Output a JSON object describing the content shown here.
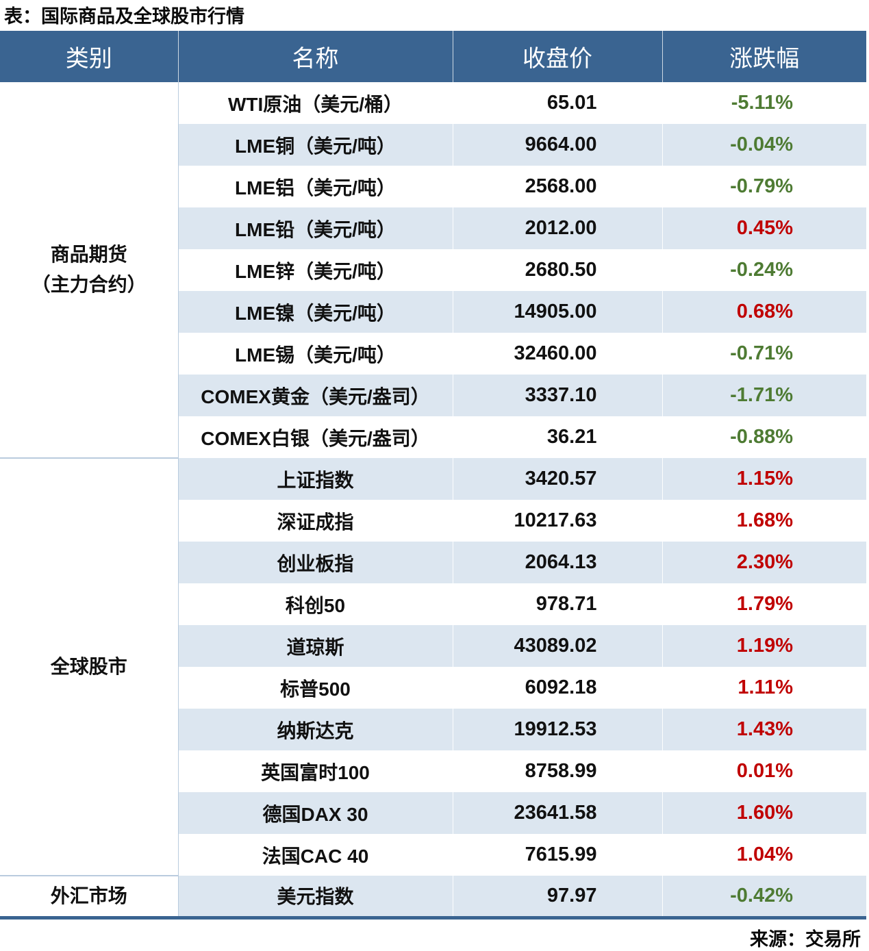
{
  "page": {
    "title": "表：国际商品及全球股市行情",
    "source": "来源：交易所"
  },
  "table": {
    "headers": [
      "类别",
      "名称",
      "收盘价",
      "涨跌幅"
    ],
    "sections": [
      {
        "category_lines": [
          "商品期货",
          "（主力合约）"
        ],
        "rows": [
          {
            "name": "WTI原油（美元/桶）",
            "close": "65.01",
            "change": "-5.11%",
            "direction": "down"
          },
          {
            "name": "LME铜（美元/吨）",
            "close": "9664.00",
            "change": "-0.04%",
            "direction": "down"
          },
          {
            "name": "LME铝（美元/吨）",
            "close": "2568.00",
            "change": "-0.79%",
            "direction": "down"
          },
          {
            "name": "LME铅（美元/吨）",
            "close": "2012.00",
            "change": "0.45%",
            "direction": "up"
          },
          {
            "name": "LME锌（美元/吨）",
            "close": "2680.50",
            "change": "-0.24%",
            "direction": "down"
          },
          {
            "name": "LME镍（美元/吨）",
            "close": "14905.00",
            "change": "0.68%",
            "direction": "up"
          },
          {
            "name": "LME锡（美元/吨）",
            "close": "32460.00",
            "change": "-0.71%",
            "direction": "down"
          },
          {
            "name": "COMEX黄金（美元/盎司）",
            "close": "3337.10",
            "change": "-1.71%",
            "direction": "down"
          },
          {
            "name": "COMEX白银（美元/盎司）",
            "close": "36.21",
            "change": "-0.88%",
            "direction": "down"
          }
        ]
      },
      {
        "category_lines": [
          "全球股市"
        ],
        "rows": [
          {
            "name": "上证指数",
            "close": "3420.57",
            "change": "1.15%",
            "direction": "up"
          },
          {
            "name": "深证成指",
            "close": "10217.63",
            "change": "1.68%",
            "direction": "up"
          },
          {
            "name": "创业板指",
            "close": "2064.13",
            "change": "2.30%",
            "direction": "up"
          },
          {
            "name": "科创50",
            "close": "978.71",
            "change": "1.79%",
            "direction": "up"
          },
          {
            "name": "道琼斯",
            "close": "43089.02",
            "change": "1.19%",
            "direction": "up"
          },
          {
            "name": "标普500",
            "close": "6092.18",
            "change": "1.11%",
            "diredirection_note": "",
            "direction": "up"
          },
          {
            "name": "纳斯达克",
            "close": "19912.53",
            "change": "1.43%",
            "direction": "up"
          },
          {
            "name": "英国富时100",
            "close": "8758.99",
            "change": "0.01%",
            "direction": "up"
          },
          {
            "name": "德国DAX 30",
            "close": "23641.58",
            "change": "1.60%",
            "direction": "up"
          },
          {
            "name": "法国CAC 40",
            "close": "7615.99",
            "change": "1.04%",
            "direction": "up"
          }
        ]
      },
      {
        "category_lines": [
          "外汇市场"
        ],
        "rows": [
          {
            "name": "美元指数",
            "close": "97.97",
            "change": "-0.42%",
            "direction": "down"
          }
        ]
      }
    ]
  },
  "colors": {
    "header_bg": "#3A6491",
    "row_alt_bg": "#DCE6F0",
    "up_red": "#C00000",
    "down_green": "#4E7B33",
    "bottom_border": "#3A6491",
    "grid_line": "#B9CBDE"
  }
}
